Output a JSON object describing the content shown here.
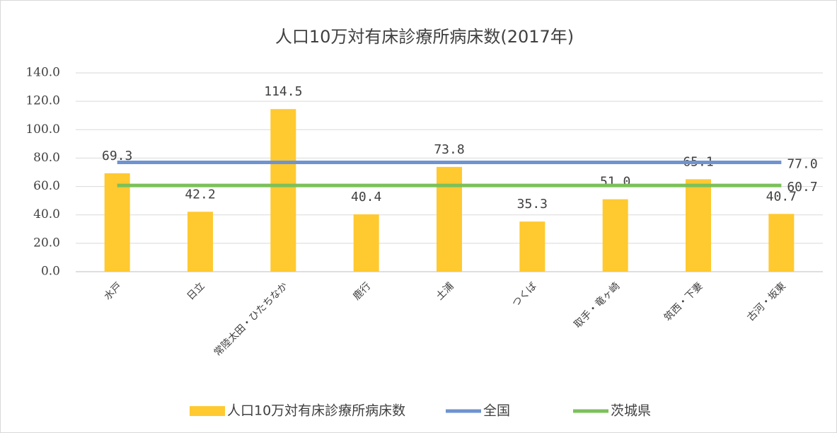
{
  "chart_data": {
    "type": "bar",
    "title": "人口10万対有床診療所病床数(2017年)",
    "categories": [
      "水戸",
      "日立",
      "常陸太田・ひたちなか",
      "鹿行",
      "土浦",
      "つくば",
      "取手・竜ヶ崎",
      "筑西・下妻",
      "古河・坂東"
    ],
    "series": [
      {
        "name": "人口10万対有床診療所病床数",
        "type": "bar",
        "color": "#ffc930",
        "values": [
          69.3,
          42.2,
          114.5,
          40.4,
          73.8,
          35.3,
          51.0,
          65.1,
          40.7
        ],
        "value_labels": [
          "69.3",
          "42.2",
          "114.5",
          "40.4",
          "73.8",
          "35.3",
          "51.0",
          "65.1",
          "40.7"
        ]
      },
      {
        "name": "全国",
        "type": "line",
        "color": "#6f93d0",
        "values": [
          77.0,
          77.0,
          77.0,
          77.0,
          77.0,
          77.0,
          77.0,
          77.0,
          77.0
        ],
        "value_labels": [
          null,
          null,
          null,
          null,
          null,
          null,
          null,
          null,
          "77.0"
        ]
      },
      {
        "name": "茨城県",
        "type": "line",
        "color": "#7cc05a",
        "values": [
          60.7,
          60.7,
          60.7,
          60.7,
          60.7,
          60.7,
          60.7,
          60.7,
          60.7
        ],
        "value_labels": [
          null,
          null,
          null,
          null,
          null,
          null,
          null,
          null,
          "60.7"
        ]
      }
    ],
    "ylim": [
      0,
      140
    ],
    "yticks": [
      {
        "value": 0,
        "label": "0.0"
      },
      {
        "value": 20,
        "label": "20.0"
      },
      {
        "value": 40,
        "label": "40.0"
      },
      {
        "value": 60,
        "label": "60.0"
      },
      {
        "value": 80,
        "label": "80.0"
      },
      {
        "value": 100,
        "label": "100.0"
      },
      {
        "value": 120,
        "label": "120.0"
      },
      {
        "value": 140,
        "label": "140.0"
      }
    ],
    "grid": true,
    "legend": "bottom"
  }
}
